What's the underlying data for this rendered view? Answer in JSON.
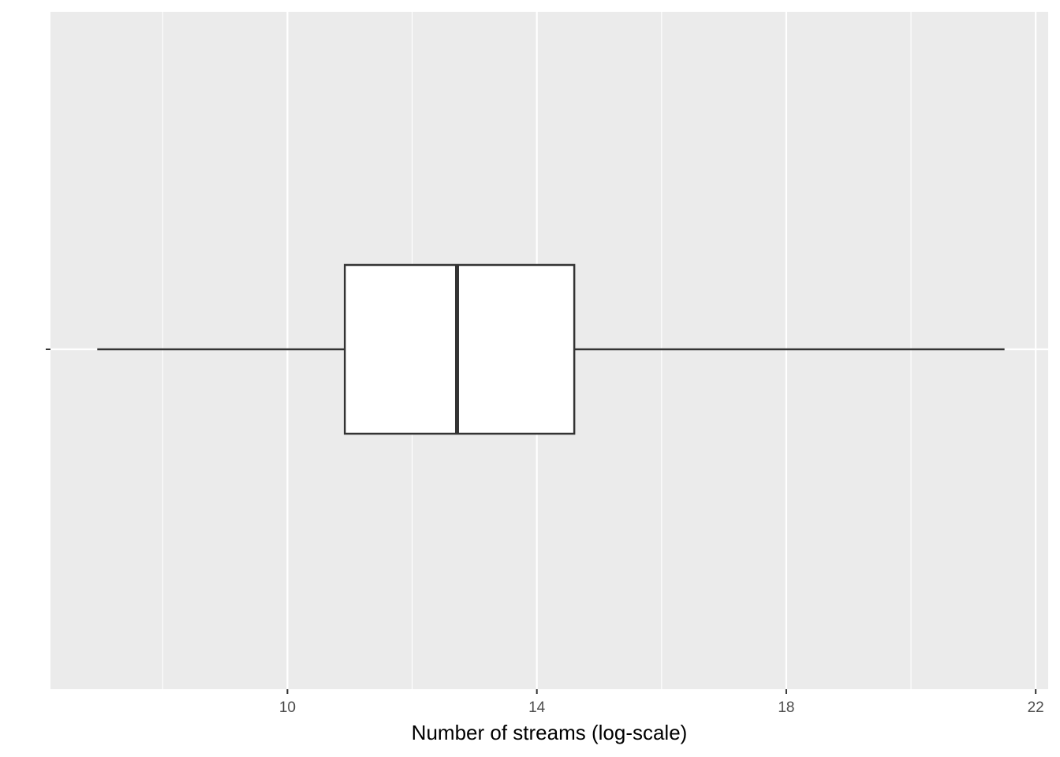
{
  "chart_data": {
    "type": "boxplot",
    "orientation": "horizontal",
    "xlabel": "Number of streams (log-scale)",
    "ylabel": "",
    "xlim": [
      6.2,
      22.2
    ],
    "x_ticks": [
      10,
      14,
      18,
      22
    ],
    "x_tick_labels": [
      "10",
      "14",
      "18",
      "22"
    ],
    "x_minor_gridlines": [
      8,
      12,
      16,
      20
    ],
    "grid": true,
    "legend": "none",
    "box": {
      "whisker_low": 6.95,
      "q1": 10.92,
      "median": 12.72,
      "q3": 14.6,
      "whisker_high": 21.5
    },
    "colors": {
      "panel_background": "#EBEBEB",
      "grid_line": "#FFFFFF",
      "box_fill": "#FFFFFF",
      "box_stroke": "#333333",
      "tick_label": "#4D4D4D",
      "axis_title": "#000000"
    }
  }
}
